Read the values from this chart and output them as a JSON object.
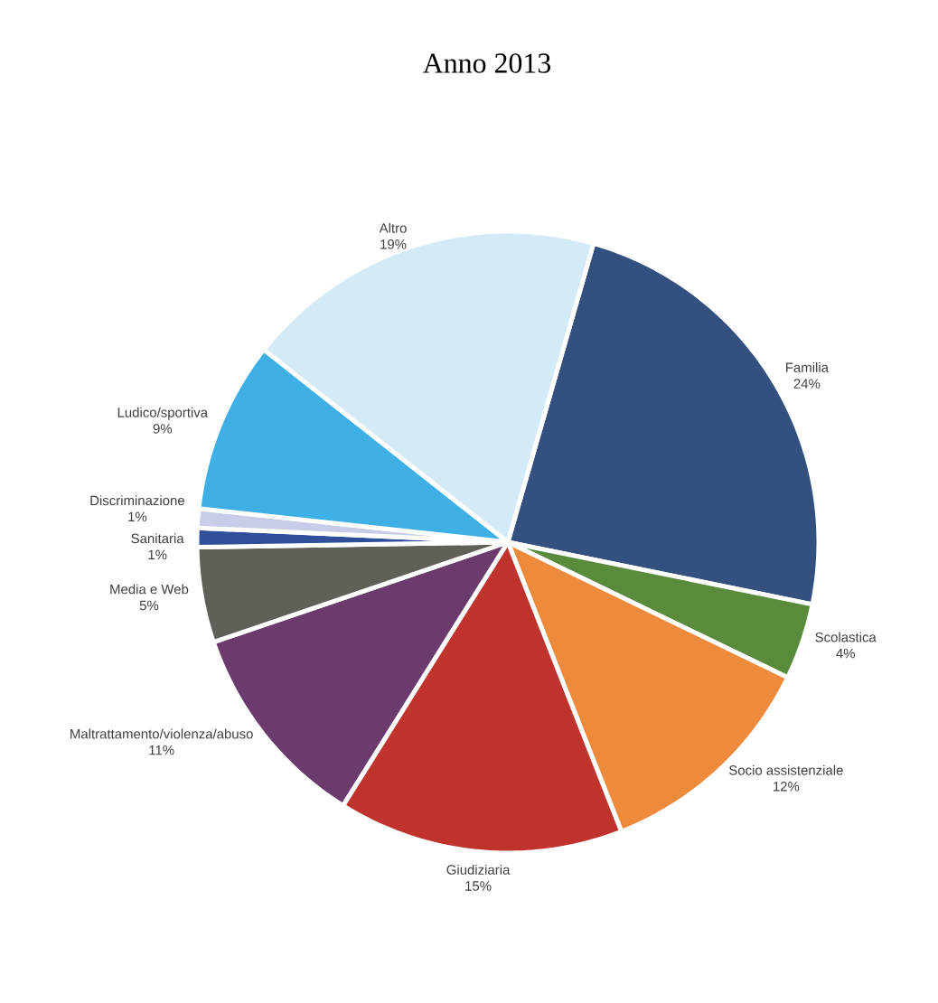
{
  "chart_data": {
    "type": "pie",
    "title": "Anno 2013",
    "categories": [
      "Familia",
      "Scolastica",
      "Socio assistenziale",
      "Giudiziaria",
      "Maltrattamento/violenza/abuso",
      "Media e Web",
      "Sanitaria",
      "Discriminazione",
      "Ludico/sportiva",
      "Altro"
    ],
    "values": [
      24,
      4,
      12,
      15,
      11,
      5,
      1,
      1,
      9,
      19
    ],
    "value_labels": [
      "24%",
      "4%",
      "12%",
      "15%",
      "11%",
      "5%",
      "1%",
      "1%",
      "9%",
      "19%"
    ],
    "colors": [
      "#34507f",
      "#5a8a3c",
      "#ee8a3c",
      "#c0322c",
      "#6b3b6e",
      "#5f6159",
      "#2f4f9a",
      "#c8cce8",
      "#3fb0e6",
      "#d4eaf7"
    ]
  }
}
